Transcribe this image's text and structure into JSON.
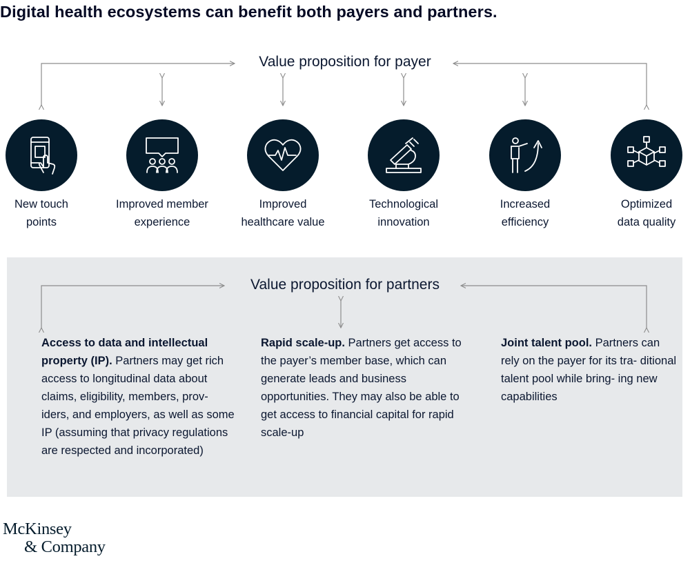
{
  "title": "Digital health ecosystems can benefit both payers and partners.",
  "payer": {
    "heading": "Value proposition for payer",
    "items": [
      {
        "label": "New touch\npoints",
        "icon": "touchscreen-phone-icon"
      },
      {
        "label": "Improved member\nexperience",
        "icon": "people-speech-bubble-icon"
      },
      {
        "label": "Improved\nhealthcare value",
        "icon": "heart-pulse-icon"
      },
      {
        "label": "Technological\ninnovation",
        "icon": "microscope-icon"
      },
      {
        "label": "Increased\nefficiency",
        "icon": "person-arrow-up-icon"
      },
      {
        "label": "Optimized\ndata quality",
        "icon": "data-network-cube-icon"
      }
    ]
  },
  "partners": {
    "heading": "Value proposition for partners",
    "columns": [
      {
        "title": "Access to data and intellectual property (IP).",
        "body": " Partners may get rich access to longitudinal data about claims, eligibility, members, prov- iders, and employers, as well as some IP (assuming that privacy regulations are respected and incorporated)"
      },
      {
        "title": "Rapid scale-up.",
        "body": " Partners get access to the payer’s member base, which can generate leads and business opportunities. They may also be able to get access to financial capital for rapid scale-up"
      },
      {
        "title": "Joint talent pool.",
        "body": " Partners can rely on the payer for its tra- ditional talent pool while bring- ing new capabilities"
      }
    ]
  },
  "logo": {
    "line1": "McKinsey",
    "line2": "& Company"
  },
  "colors": {
    "navy": "#051c2c",
    "panel": "#e7e9eb",
    "connector": "#8c8c8c"
  }
}
